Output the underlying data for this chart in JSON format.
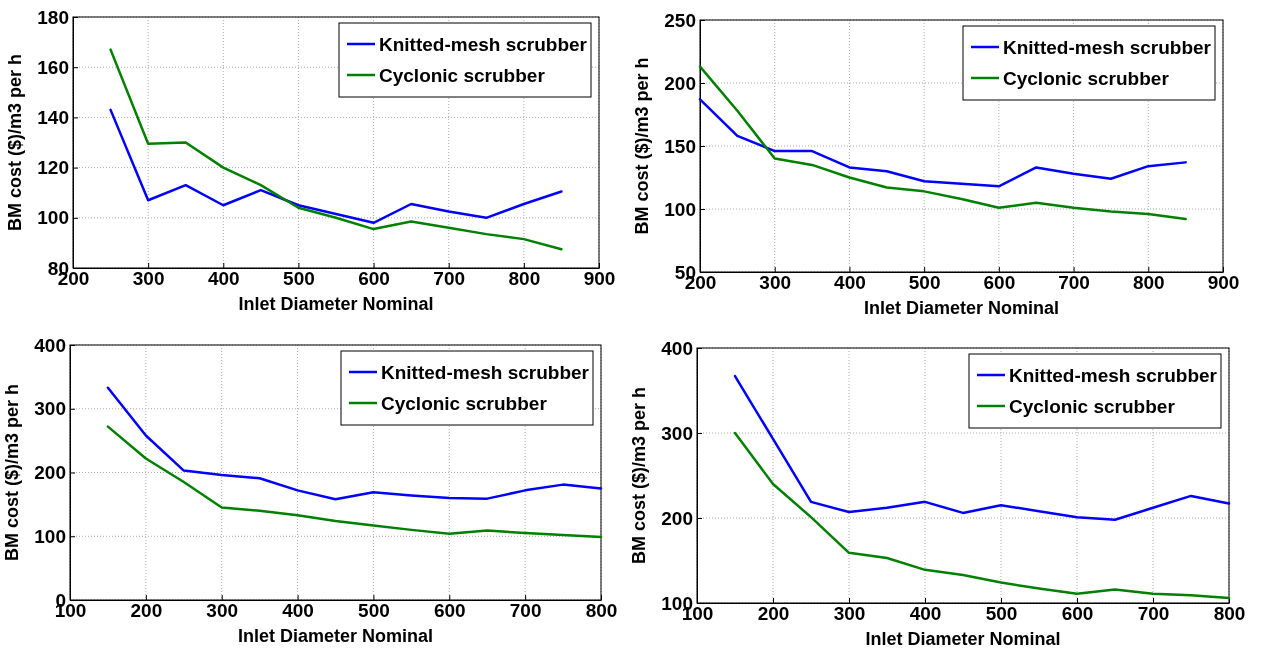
{
  "chart_data": [
    {
      "type": "line",
      "xlabel": "Inlet Diameter Nominal",
      "ylabel": "BM cost ($)/m3 per h",
      "x": [
        250,
        300,
        350,
        400,
        450,
        500,
        550,
        600,
        650,
        700,
        750,
        800,
        850
      ],
      "xlim": [
        200,
        900
      ],
      "xticks": [
        200,
        300,
        400,
        500,
        600,
        700,
        800,
        900
      ],
      "ylim": [
        80,
        180
      ],
      "yticks": [
        80,
        100,
        120,
        140,
        160,
        180
      ],
      "grid": true,
      "legend": "top right",
      "series": [
        {
          "name": "Knitted-mesh scrubber",
          "color": "#0000ff",
          "values": [
            143,
            107,
            113,
            105,
            111,
            105,
            101.5,
            98,
            105.5,
            102.5,
            100,
            105.5,
            110.5
          ]
        },
        {
          "name": "Cyclonic scrubber",
          "color": "#008000",
          "values": [
            167,
            129.5,
            130,
            120,
            113,
            104,
            100,
            95.5,
            98.5,
            96,
            93.5,
            91.5,
            87.5
          ]
        }
      ]
    },
    {
      "type": "line",
      "xlabel": "Inlet Diameter Nominal",
      "ylabel": "BM cost ($)/m3 per h",
      "x": [
        200,
        250,
        300,
        350,
        400,
        450,
        500,
        550,
        600,
        650,
        700,
        750,
        800,
        850
      ],
      "xlim": [
        200,
        900
      ],
      "xticks": [
        200,
        300,
        400,
        500,
        600,
        700,
        800,
        900
      ],
      "ylim": [
        50,
        250
      ],
      "yticks": [
        50,
        100,
        150,
        200,
        250
      ],
      "grid": true,
      "legend": "top right",
      "series": [
        {
          "name": "Knitted-mesh scrubber",
          "color": "#0000ff",
          "values": [
            187,
            158,
            146,
            146,
            133,
            130,
            122,
            120,
            118,
            133,
            128,
            124,
            134,
            137
          ]
        },
        {
          "name": "Cyclonic scrubber",
          "color": "#008000",
          "values": [
            213,
            178,
            140,
            135,
            125,
            117,
            114,
            108,
            101,
            105,
            101,
            98,
            96,
            92
          ]
        }
      ]
    },
    {
      "type": "line",
      "xlabel": "Inlet Diameter Nominal",
      "ylabel": "BM cost ($)/m3 per h",
      "x": [
        150,
        200,
        250,
        300,
        350,
        400,
        450,
        500,
        550,
        600,
        650,
        700,
        750,
        800
      ],
      "xlim": [
        100,
        800
      ],
      "xticks": [
        100,
        200,
        300,
        400,
        500,
        600,
        700,
        800
      ],
      "ylim": [
        0,
        400
      ],
      "yticks": [
        0,
        100,
        200,
        300,
        400
      ],
      "grid": true,
      "legend": "top right",
      "series": [
        {
          "name": "Knitted-mesh scrubber",
          "color": "#0000ff",
          "values": [
            333,
            258,
            203,
            196,
            191,
            172,
            158,
            169,
            164,
            160,
            159,
            172,
            181,
            175
          ]
        },
        {
          "name": "Cyclonic scrubber",
          "color": "#008000",
          "values": [
            272,
            222,
            185,
            145,
            140,
            133,
            124,
            117,
            110,
            104,
            109,
            105,
            102,
            99
          ]
        }
      ]
    },
    {
      "type": "line",
      "xlabel": "Inlet Diameter Nominal",
      "ylabel": "BM cost ($)/m3 per h",
      "x": [
        150,
        200,
        250,
        300,
        350,
        400,
        450,
        500,
        550,
        600,
        650,
        700,
        750,
        800
      ],
      "xlim": [
        100,
        800
      ],
      "xticks": [
        100,
        200,
        300,
        400,
        500,
        600,
        700,
        800
      ],
      "ylim": [
        100,
        400
      ],
      "yticks": [
        100,
        200,
        300,
        400
      ],
      "grid": true,
      "legend": "top right",
      "series": [
        {
          "name": "Knitted-mesh scrubber",
          "color": "#0000ff",
          "values": [
            367,
            293,
            219,
            207,
            212,
            219,
            206,
            215,
            208,
            201,
            198,
            212,
            226,
            217
          ]
        },
        {
          "name": "Cyclonic scrubber",
          "color": "#008000",
          "values": [
            300,
            240,
            201,
            159,
            153,
            139,
            133,
            124,
            117,
            111,
            116,
            111,
            109,
            106
          ]
        }
      ]
    }
  ]
}
